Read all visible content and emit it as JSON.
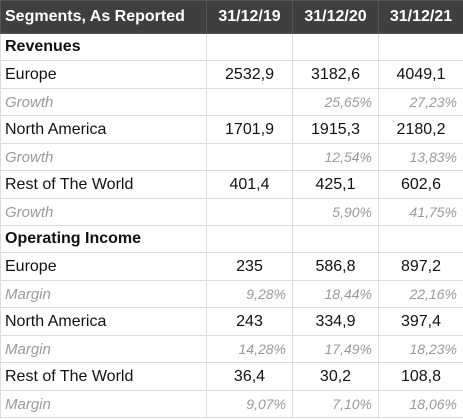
{
  "header": {
    "title": "Segments, As Reported",
    "columns": [
      "31/12/19",
      "31/12/20",
      "31/12/21"
    ]
  },
  "rows": [
    {
      "type": "section",
      "label": "Revenues",
      "values": [
        "",
        "",
        ""
      ]
    },
    {
      "type": "main",
      "label": "Europe",
      "values": [
        "2532,9",
        "3182,6",
        "4049,1"
      ]
    },
    {
      "type": "sub",
      "label": "Growth",
      "values": [
        "",
        "25,65%",
        "27,23%"
      ]
    },
    {
      "type": "main",
      "label": "North America",
      "values": [
        "1701,9",
        "1915,3",
        "2180,2"
      ]
    },
    {
      "type": "sub",
      "label": "Growth",
      "values": [
        "",
        "12,54%",
        "13,83%"
      ]
    },
    {
      "type": "main",
      "label": "Rest of The World",
      "values": [
        "401,4",
        "425,1",
        "602,6"
      ]
    },
    {
      "type": "sub",
      "label": "Growth",
      "values": [
        "",
        "5,90%",
        "41,75%"
      ]
    },
    {
      "type": "section",
      "label": "Operating Income",
      "values": [
        "",
        "",
        ""
      ]
    },
    {
      "type": "main",
      "label": "Europe",
      "values": [
        "235",
        "586,8",
        "897,2"
      ]
    },
    {
      "type": "sub",
      "label": "Margin",
      "values": [
        "9,28%",
        "18,44%",
        "22,16%"
      ]
    },
    {
      "type": "main",
      "label": "North America",
      "values": [
        "243",
        "334,9",
        "397,4"
      ]
    },
    {
      "type": "sub",
      "label": "Margin",
      "values": [
        "14,28%",
        "17,49%",
        "18,23%"
      ]
    },
    {
      "type": "main",
      "label": "Rest of The World",
      "values": [
        "36,4",
        "30,2",
        "108,8"
      ]
    },
    {
      "type": "sub",
      "label": "Margin",
      "values": [
        "9,07%",
        "7,10%",
        "18,06%"
      ]
    }
  ]
}
